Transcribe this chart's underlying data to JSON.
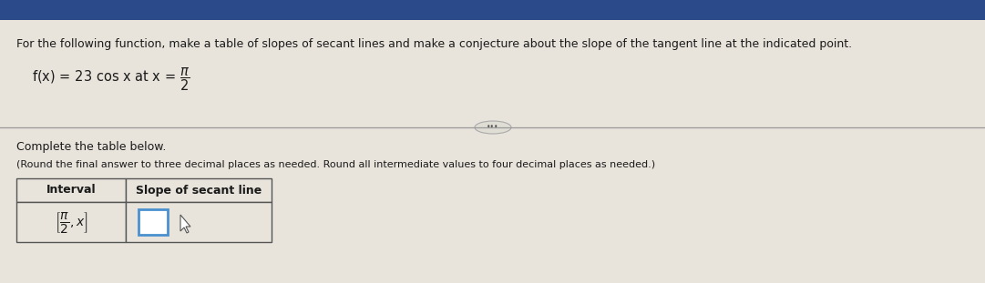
{
  "title_text": "For the following function, make a table of slopes of secant lines and make a conjecture about the slope of the tangent line at the indicated point.",
  "complete_text": "Complete the table below.",
  "round_text": "(Round the final answer to three decimal places as needed. Round all intermediate values to four decimal places as needed.)",
  "col1_header": "Interval",
  "col2_header": "Slope of secant line",
  "bg_color": "#e8e4dc",
  "header_bar_color": "#2b4a8a",
  "input_box_color": "#4a90d0",
  "title_fontsize": 9.0,
  "body_fontsize": 9.0,
  "small_fontsize": 8.5,
  "table_fontsize": 9.0
}
